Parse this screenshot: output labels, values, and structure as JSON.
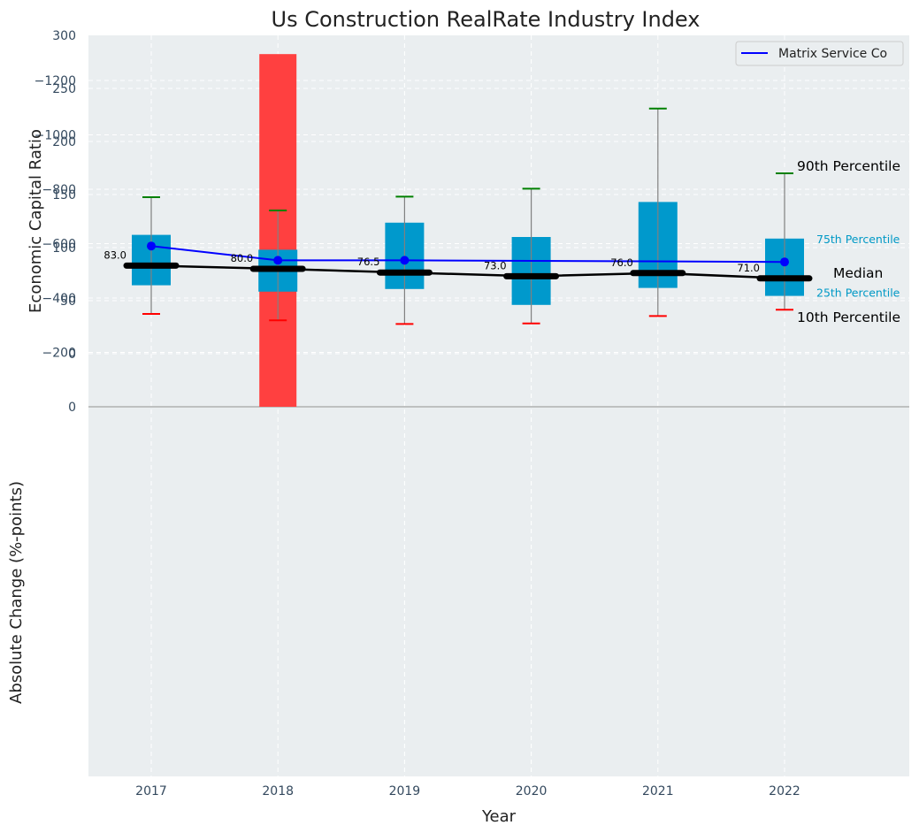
{
  "chart_data": [
    {
      "type": "box",
      "panel": "top",
      "title": "Us Construction RealRate Industry Index",
      "xlabel": "",
      "ylabel": "Economic Capital Ratio",
      "ylim": [
        0,
        300
      ],
      "yticks": [
        0,
        50,
        100,
        150,
        200,
        250,
        300
      ],
      "grid": true,
      "categories": [
        "2017",
        "2018",
        "2019",
        "2020",
        "2021",
        "2022"
      ],
      "percentiles": {
        "p10": [
          37.5,
          31.5,
          28,
          28.5,
          35.5,
          41.5
        ],
        "p25": [
          64.5,
          58.5,
          61,
          46,
          62,
          54.5
        ],
        "median": [
          83.0,
          80.0,
          76.5,
          73.0,
          76.0,
          71.0
        ],
        "p75": [
          112,
          98,
          123.5,
          110,
          143,
          108.5
        ],
        "p90": [
          147.5,
          135,
          148,
          155.5,
          231,
          170
        ]
      },
      "median_labels": [
        "83.0",
        "80.0",
        "76.5",
        "73.0",
        "76.0",
        "71.0"
      ],
      "series": [
        {
          "name": "Matrix Service Co",
          "color": "#0000ff",
          "values": [
            101.5,
            88,
            88,
            null,
            null,
            86.5
          ]
        }
      ],
      "legend": {
        "placement": "top-right",
        "entries": [
          "Matrix Service Co"
        ]
      },
      "annotations": {
        "p90": "90th Percentile",
        "p75": "75th Percentile",
        "median": "Median",
        "p25": "25th Percentile",
        "p10": "10th Percentile"
      },
      "colors": {
        "box": "#0099cc",
        "p90_cap": "#008000",
        "p10_cap": "#ff0000",
        "median": "#000000",
        "whisker": "#808080",
        "background": "#eaeef0"
      }
    },
    {
      "type": "bar",
      "panel": "bottom",
      "xlabel": "Year",
      "ylabel": "Absolute Change (%-points)",
      "ylim": [
        -1360,
        0
      ],
      "yticks": [
        0,
        -200,
        -400,
        -600,
        -800,
        -1000,
        -1200
      ],
      "ytick_labels": [
        "0",
        "−200",
        "−400",
        "−600",
        "−800",
        "−1000",
        "−1200"
      ],
      "grid": true,
      "categories": [
        "2017",
        "2018",
        "2019",
        "2020",
        "2021",
        "2022"
      ],
      "values": [
        null,
        -1297,
        null,
        null,
        null,
        null
      ],
      "colors": {
        "negative": "#ff4040"
      }
    }
  ]
}
